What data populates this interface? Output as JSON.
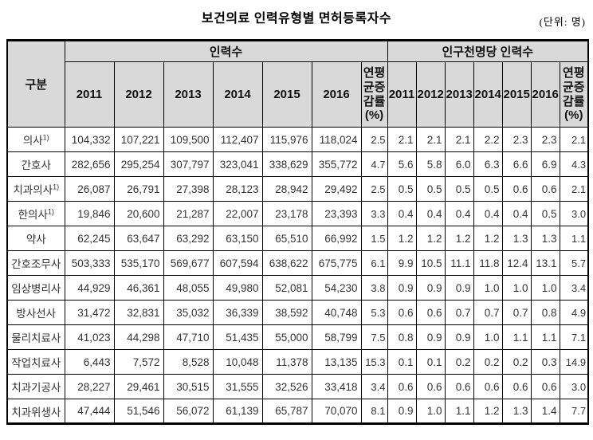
{
  "title": "보건의료 인력유형별 면허등록자수",
  "unit_label": "(단위: 명)",
  "colors": {
    "header_bg": "#d9d9d9",
    "border": "#000000",
    "text": "#333333"
  },
  "table": {
    "col_group_label": "구분",
    "group1_header": "인력수",
    "group2_header": "인구천명당 인력수",
    "growth_header": "연평균증감률(%)",
    "years": [
      "2011",
      "2012",
      "2013",
      "2014",
      "2015",
      "2016"
    ],
    "rows": [
      {
        "label": "의사",
        "sup": "1)",
        "counts": [
          "104,332",
          "107,221",
          "109,500",
          "112,407",
          "115,976",
          "118,024"
        ],
        "count_growth": "2.5",
        "per1000": [
          "2.1",
          "2.1",
          "2.1",
          "2.2",
          "2.3",
          "2.3"
        ],
        "per1000_growth": "2.1"
      },
      {
        "label": "간호사",
        "sup": "",
        "counts": [
          "282,656",
          "295,254",
          "307,797",
          "323,041",
          "338,629",
          "355,772"
        ],
        "count_growth": "4.7",
        "per1000": [
          "5.6",
          "5.8",
          "6.0",
          "6.3",
          "6.6",
          "6.9"
        ],
        "per1000_growth": "4.3"
      },
      {
        "label": "치과의사",
        "sup": "1)",
        "counts": [
          "26,087",
          "26,791",
          "27,398",
          "28,123",
          "28,942",
          "29,492"
        ],
        "count_growth": "2.5",
        "per1000": [
          "0.5",
          "0.5",
          "0.5",
          "0.5",
          "0.6",
          "0.6"
        ],
        "per1000_growth": "2.1"
      },
      {
        "label": "한의사",
        "sup": "1)",
        "counts": [
          "19,846",
          "20,600",
          "21,287",
          "22,007",
          "23,178",
          "23,393"
        ],
        "count_growth": "3.3",
        "per1000": [
          "0.4",
          "0.4",
          "0.4",
          "0.4",
          "0.4",
          "0.5"
        ],
        "per1000_growth": "3.0"
      },
      {
        "label": "약사",
        "sup": "",
        "counts": [
          "62,245",
          "63,647",
          "63,292",
          "63,150",
          "65,510",
          "66,992"
        ],
        "count_growth": "1.5",
        "per1000": [
          "1.2",
          "1.2",
          "1.2",
          "1.2",
          "1.3",
          "1.3"
        ],
        "per1000_growth": "1.1"
      },
      {
        "label": "간호조무사",
        "sup": "",
        "counts": [
          "503,333",
          "535,170",
          "569,677",
          "607,594",
          "638,622",
          "675,775"
        ],
        "count_growth": "6.1",
        "per1000": [
          "9.9",
          "10.5",
          "11.1",
          "11.8",
          "12.4",
          "13.1"
        ],
        "per1000_growth": "5.7"
      },
      {
        "label": "임상병리사",
        "sup": "",
        "counts": [
          "44,929",
          "46,361",
          "48,055",
          "49,980",
          "52,081",
          "54,230"
        ],
        "count_growth": "3.8",
        "per1000": [
          "0.9",
          "0.9",
          "0.9",
          "1.0",
          "1.0",
          "1.0"
        ],
        "per1000_growth": "3.4"
      },
      {
        "label": "방사선사",
        "sup": "",
        "counts": [
          "31,472",
          "32,831",
          "35,032",
          "36,339",
          "38,592",
          "40,748"
        ],
        "count_growth": "5.3",
        "per1000": [
          "0.6",
          "0.6",
          "0.7",
          "0.7",
          "0.7",
          "0.8"
        ],
        "per1000_growth": "4.9"
      },
      {
        "label": "물리치료사",
        "sup": "",
        "counts": [
          "41,023",
          "44,298",
          "47,710",
          "51,435",
          "55,000",
          "58,799"
        ],
        "count_growth": "7.5",
        "per1000": [
          "0.8",
          "0.9",
          "0.9",
          "1.0",
          "1.1",
          "1.1"
        ],
        "per1000_growth": "7.1"
      },
      {
        "label": "작업치료사",
        "sup": "",
        "counts": [
          "6,443",
          "7,572",
          "8,528",
          "10,048",
          "11,378",
          "13,135"
        ],
        "count_growth": "15.3",
        "per1000": [
          "0.1",
          "0.1",
          "0.2",
          "0.2",
          "0.2",
          "0.3"
        ],
        "per1000_growth": "14.9"
      },
      {
        "label": "치과기공사",
        "sup": "",
        "counts": [
          "28,227",
          "29,461",
          "30,515",
          "31,555",
          "32,526",
          "33,418"
        ],
        "count_growth": "3.4",
        "per1000": [
          "0.6",
          "0.6",
          "0.6",
          "0.6",
          "0.6",
          "0.6"
        ],
        "per1000_growth": "3.0"
      },
      {
        "label": "치과위생사",
        "sup": "",
        "counts": [
          "47,444",
          "51,546",
          "56,072",
          "61,139",
          "65,787",
          "70,070"
        ],
        "count_growth": "8.1",
        "per1000": [
          "0.9",
          "1.0",
          "1.1",
          "1.2",
          "1.3",
          "1.4"
        ],
        "per1000_growth": "7.7"
      }
    ]
  }
}
